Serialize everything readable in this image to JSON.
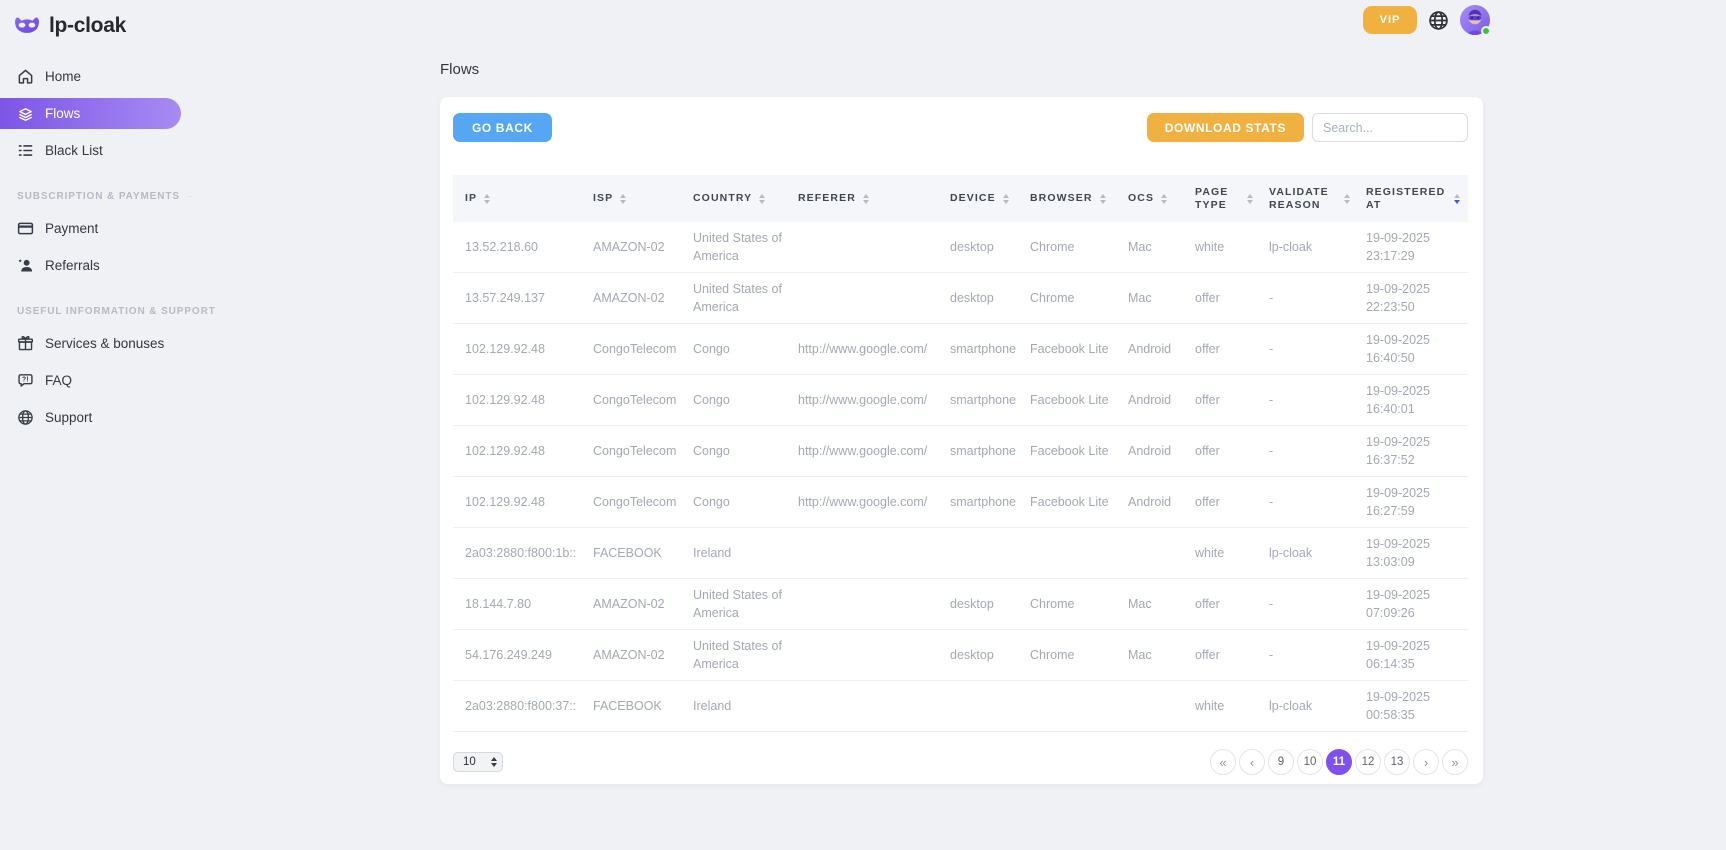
{
  "app": {
    "logo_text": "lp-cloak",
    "vip_label": "VIP"
  },
  "sidebar": {
    "main_items": [
      {
        "label": "Home",
        "icon": "home-icon",
        "active": false
      },
      {
        "label": "Flows",
        "icon": "flows-icon",
        "active": true
      },
      {
        "label": "Black List",
        "icon": "black-list-icon",
        "active": false
      }
    ],
    "sections": [
      {
        "label": "SUBSCRIPTION & PAYMENTS",
        "items": [
          {
            "label": "Payment",
            "icon": "payment-icon"
          },
          {
            "label": "Referrals",
            "icon": "referrals-icon"
          }
        ]
      },
      {
        "label": "USEFUL INFORMATION & SUPPORT",
        "items": [
          {
            "label": "Services & bonuses",
            "icon": "gift-icon"
          },
          {
            "label": "FAQ",
            "icon": "faq-icon"
          },
          {
            "label": "Support",
            "icon": "support-globe-icon"
          }
        ]
      }
    ]
  },
  "page": {
    "title": "Flows",
    "go_back_label": "GO BACK",
    "download_stats_label": "DOWNLOAD STATS",
    "search_placeholder": "Search..."
  },
  "table": {
    "columns": [
      "IP",
      "ISP",
      "COUNTRY",
      "REFERER",
      "DEVICE",
      "BROWSER",
      "OCS",
      "PAGE TYPE",
      "VALIDATE REASON",
      "REGISTERED AT"
    ],
    "sorted_column_index": 9,
    "sort_direction": "desc",
    "rows": [
      [
        "13.52.218.60",
        "AMAZON-02",
        "United States of America",
        "",
        "desktop",
        "Chrome",
        "Mac",
        "white",
        "lp-cloak",
        "19-09-2025 23:17:29"
      ],
      [
        "13.57.249.137",
        "AMAZON-02",
        "United States of America",
        "",
        "desktop",
        "Chrome",
        "Mac",
        "offer",
        "-",
        "19-09-2025 22:23:50"
      ],
      [
        "102.129.92.48",
        "CongoTelecom",
        "Congo",
        "http://www.google.com/",
        "smartphone",
        "Facebook Lite",
        "Android",
        "offer",
        "-",
        "19-09-2025 16:40:50"
      ],
      [
        "102.129.92.48",
        "CongoTelecom",
        "Congo",
        "http://www.google.com/",
        "smartphone",
        "Facebook Lite",
        "Android",
        "offer",
        "-",
        "19-09-2025 16:40:01"
      ],
      [
        "102.129.92.48",
        "CongoTelecom",
        "Congo",
        "http://www.google.com/",
        "smartphone",
        "Facebook Lite",
        "Android",
        "offer",
        "-",
        "19-09-2025 16:37:52"
      ],
      [
        "102.129.92.48",
        "CongoTelecom",
        "Congo",
        "http://www.google.com/",
        "smartphone",
        "Facebook Lite",
        "Android",
        "offer",
        "-",
        "19-09-2025 16:27:59"
      ],
      [
        "2a03:2880:f800:1b::",
        "FACEBOOK",
        "Ireland",
        "",
        "",
        "",
        "",
        "white",
        "lp-cloak",
        "19-09-2025 13:03:09"
      ],
      [
        "18.144.7.80",
        "AMAZON-02",
        "United States of America",
        "",
        "desktop",
        "Chrome",
        "Mac",
        "offer",
        "-",
        "19-09-2025 07:09:26"
      ],
      [
        "54.176.249.249",
        "AMAZON-02",
        "United States of America",
        "",
        "desktop",
        "Chrome",
        "Mac",
        "offer",
        "-",
        "19-09-2025 06:14:35"
      ],
      [
        "2a03:2880:f800:37::",
        "FACEBOOK",
        "Ireland",
        "",
        "",
        "",
        "",
        "white",
        "lp-cloak",
        "19-09-2025 00:58:35"
      ]
    ]
  },
  "pagination": {
    "page_size": "10",
    "first_label": "«",
    "prev_label": "‹",
    "next_label": "›",
    "last_label": "»",
    "pages": [
      "9",
      "10",
      "11",
      "12",
      "13"
    ],
    "active_page": "11"
  },
  "colors": {
    "accent_purple": "#8050ee",
    "accent_orange": "#f0b140",
    "accent_blue": "#55a7f3",
    "sort_active": "#3d5af1",
    "status_online": "#3ec23c"
  }
}
